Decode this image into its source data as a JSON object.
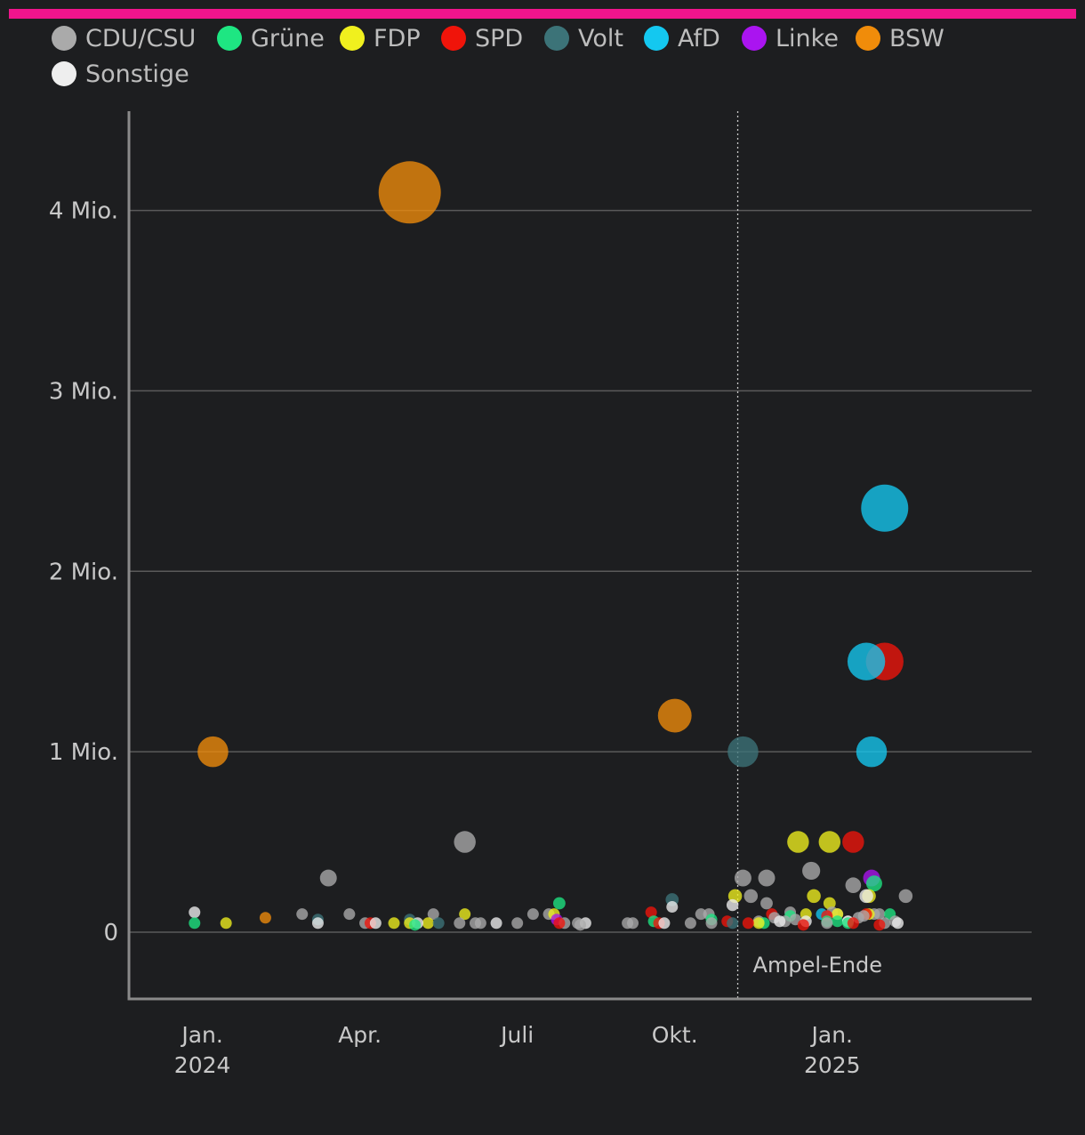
{
  "chart_data": {
    "type": "scatter",
    "title": "",
    "xlabel": "",
    "ylabel": "",
    "x_unit": "months since Jan 2024",
    "y_unit": "donation (EUR)",
    "ylim": [
      -370000,
      4550000
    ],
    "xlim": [
      -1.4,
      15.8
    ],
    "y_ticks": [
      {
        "value": 0,
        "label": "0"
      },
      {
        "value": 1000000,
        "label": "1 Mio."
      },
      {
        "value": 2000000,
        "label": "2 Mio."
      },
      {
        "value": 3000000,
        "label": "3 Mio."
      },
      {
        "value": 4000000,
        "label": "4 Mio."
      }
    ],
    "x_ticks": [
      {
        "value": 0,
        "label": "Jan.",
        "sub": "2024"
      },
      {
        "value": 3,
        "label": "Apr.",
        "sub": ""
      },
      {
        "value": 6,
        "label": "Juli",
        "sub": ""
      },
      {
        "value": 9,
        "label": "Okt.",
        "sub": ""
      },
      {
        "value": 12,
        "label": "Jan.",
        "sub": "2025"
      }
    ],
    "annotation": {
      "x": 10.2,
      "label": "Ampel-Ende"
    },
    "legend": [
      {
        "name": "CDU/CSU",
        "color": "#aaaaaa"
      },
      {
        "name": "Grüne",
        "color": "#1ee682"
      },
      {
        "name": "FDP",
        "color": "#f0f01e"
      },
      {
        "name": "SPD",
        "color": "#f0140a"
      },
      {
        "name": "Volt",
        "color": "#3c7378"
      },
      {
        "name": "AfD",
        "color": "#14c8f0"
      },
      {
        "name": "Linke",
        "color": "#aa14f0"
      },
      {
        "name": "BSW",
        "color": "#f08c0a"
      },
      {
        "name": "Sonstige",
        "color": "#eeeeee"
      }
    ],
    "series": [
      {
        "name": "CDU/CSU",
        "points": [
          [
            5.0,
            500000
          ],
          [
            2.4,
            300000
          ],
          [
            10.3,
            300000
          ],
          [
            10.75,
            300000
          ],
          [
            11.6,
            340000
          ],
          [
            12.4,
            260000
          ],
          [
            1.9,
            100000
          ],
          [
            2.8,
            100000
          ],
          [
            4.4,
            100000
          ],
          [
            6.3,
            100000
          ],
          [
            6.6,
            100000
          ],
          [
            9.5,
            100000
          ],
          [
            9.65,
            100000
          ],
          [
            10.45,
            200000
          ],
          [
            10.75,
            160000
          ],
          [
            12.0,
            110000
          ],
          [
            12.3,
            60000
          ],
          [
            12.6,
            90000
          ],
          [
            13.4,
            200000
          ],
          [
            12.8,
            100000
          ],
          [
            3.1,
            50000
          ],
          [
            4.9,
            50000
          ],
          [
            5.2,
            50000
          ],
          [
            5.3,
            50000
          ],
          [
            6.0,
            50000
          ],
          [
            6.9,
            50000
          ],
          [
            7.15,
            50000
          ],
          [
            7.2,
            40000
          ],
          [
            8.1,
            50000
          ],
          [
            8.2,
            50000
          ],
          [
            9.3,
            50000
          ],
          [
            9.7,
            50000
          ],
          [
            10.6,
            60000
          ],
          [
            10.9,
            80000
          ],
          [
            11.1,
            60000
          ],
          [
            11.3,
            70000
          ],
          [
            11.9,
            50000
          ],
          [
            12.1,
            100000
          ],
          [
            12.5,
            80000
          ],
          [
            13.0,
            50000
          ],
          [
            13.2,
            60000
          ],
          [
            11.2,
            110000
          ],
          [
            12.9,
            100000
          ]
        ]
      },
      {
        "name": "Grüne",
        "points": [
          [
            -0.15,
            50000
          ],
          [
            4.05,
            40000
          ],
          [
            6.8,
            160000
          ],
          [
            8.6,
            60000
          ],
          [
            9.7,
            70000
          ],
          [
            10.7,
            50000
          ],
          [
            11.2,
            90000
          ],
          [
            12.1,
            60000
          ],
          [
            12.8,
            270000
          ],
          [
            13.1,
            100000
          ],
          [
            11.9,
            60000
          ],
          [
            12.3,
            50000
          ]
        ]
      },
      {
        "name": "FDP",
        "points": [
          [
            0.45,
            50000
          ],
          [
            3.65,
            50000
          ],
          [
            3.95,
            50000
          ],
          [
            4.3,
            50000
          ],
          [
            5.0,
            100000
          ],
          [
            6.7,
            100000
          ],
          [
            10.15,
            200000
          ],
          [
            11.35,
            500000
          ],
          [
            11.95,
            500000
          ],
          [
            11.65,
            200000
          ],
          [
            12.7,
            200000
          ],
          [
            11.95,
            160000
          ],
          [
            10.6,
            50000
          ],
          [
            11.5,
            100000
          ],
          [
            12.1,
            100000
          ],
          [
            12.7,
            100000
          ]
        ]
      },
      {
        "name": "SPD",
        "points": [
          [
            3.2,
            50000
          ],
          [
            6.8,
            50000
          ],
          [
            8.55,
            110000
          ],
          [
            8.7,
            50000
          ],
          [
            10.0,
            60000
          ],
          [
            10.4,
            50000
          ],
          [
            10.85,
            100000
          ],
          [
            11.45,
            40000
          ],
          [
            11.9,
            90000
          ],
          [
            12.4,
            500000
          ],
          [
            12.65,
            100000
          ],
          [
            12.9,
            40000
          ],
          [
            12.4,
            50000
          ],
          [
            13.0,
            1500000
          ]
        ]
      },
      {
        "name": "Volt",
        "points": [
          [
            2.2,
            70000
          ],
          [
            3.95,
            70000
          ],
          [
            4.5,
            50000
          ],
          [
            8.95,
            180000
          ],
          [
            10.3,
            1000000
          ],
          [
            10.1,
            50000
          ]
        ]
      },
      {
        "name": "AfD",
        "points": [
          [
            12.65,
            1500000
          ],
          [
            12.75,
            1000000
          ],
          [
            13.0,
            2350000
          ],
          [
            11.8,
            100000
          ]
        ]
      },
      {
        "name": "Linke",
        "points": [
          [
            6.75,
            70000
          ],
          [
            12.75,
            300000
          ]
        ]
      },
      {
        "name": "BSW",
        "points": [
          [
            0.2,
            1000000
          ],
          [
            1.2,
            80000
          ],
          [
            3.95,
            4100000
          ],
          [
            9.0,
            1200000
          ]
        ]
      },
      {
        "name": "Sonstige",
        "points": [
          [
            -0.15,
            110000
          ],
          [
            2.2,
            50000
          ],
          [
            3.3,
            50000
          ],
          [
            4.1,
            50000
          ],
          [
            5.6,
            50000
          ],
          [
            7.3,
            50000
          ],
          [
            8.8,
            50000
          ],
          [
            8.95,
            140000
          ],
          [
            10.1,
            150000
          ],
          [
            11.0,
            60000
          ],
          [
            11.5,
            60000
          ],
          [
            12.3,
            60000
          ],
          [
            12.65,
            200000
          ],
          [
            13.25,
            50000
          ]
        ]
      }
    ]
  }
}
